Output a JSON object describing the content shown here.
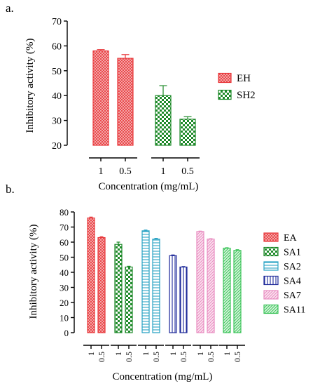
{
  "colors": {
    "red": "#e8373a",
    "green": "#1f8a2a",
    "cyan": "#2aa3c4",
    "navy": "#1f2a9a",
    "pink": "#e88cc0",
    "lime": "#3cc45a"
  },
  "chart_data": [
    {
      "type": "bar",
      "panel_label": "a.",
      "ylabel": "Inhibitory activity (%)",
      "xlabel": "Concentration (mg/mL)",
      "ylim": [
        20,
        70
      ],
      "yticks": [
        20,
        30,
        40,
        50,
        60,
        70
      ],
      "legend_position": "right",
      "series": [
        {
          "name": "EH",
          "color": "red",
          "pattern": "crosshatch",
          "categories": [
            "1",
            "0.5"
          ],
          "values": [
            58,
            55
          ],
          "errors": [
            0.5,
            1.5
          ]
        },
        {
          "name": "SH2",
          "color": "green",
          "pattern": "checker",
          "categories": [
            "1",
            "0.5"
          ],
          "values": [
            40,
            30.5
          ],
          "errors": [
            4,
            1
          ]
        }
      ]
    },
    {
      "type": "bar",
      "panel_label": "b.",
      "ylabel": "Inhibitory activity (%)",
      "xlabel": "Concentration (mg/mL)",
      "ylim": [
        0,
        80
      ],
      "yticks": [
        0,
        10,
        20,
        30,
        40,
        50,
        60,
        70,
        80
      ],
      "legend_position": "right",
      "series": [
        {
          "name": "EA",
          "color": "red",
          "pattern": "crosshatch",
          "categories": [
            "1",
            "0.5"
          ],
          "values": [
            76,
            63
          ],
          "errors": [
            0.6,
            0.6
          ]
        },
        {
          "name": "SA1",
          "color": "green",
          "pattern": "checker",
          "categories": [
            "1",
            "0.5"
          ],
          "values": [
            58.5,
            43.5
          ],
          "errors": [
            1.5,
            0.5
          ]
        },
        {
          "name": "SA2",
          "color": "cyan",
          "pattern": "hlines",
          "categories": [
            "1",
            "0.5"
          ],
          "values": [
            67.5,
            62
          ],
          "errors": [
            0.5,
            0.5
          ]
        },
        {
          "name": "SA4",
          "color": "navy",
          "pattern": "vlines",
          "categories": [
            "1",
            "0.5"
          ],
          "values": [
            51,
            43.5
          ],
          "errors": [
            0.5,
            0.3
          ]
        },
        {
          "name": "SA7",
          "color": "pink",
          "pattern": "diag",
          "categories": [
            "1",
            "0.5"
          ],
          "values": [
            67,
            62
          ],
          "errors": [
            0.3,
            0.3
          ]
        },
        {
          "name": "SA11",
          "color": "lime",
          "pattern": "diag",
          "categories": [
            "1",
            "0.5"
          ],
          "values": [
            56,
            54.5
          ],
          "errors": [
            0.3,
            0.5
          ]
        }
      ]
    }
  ]
}
